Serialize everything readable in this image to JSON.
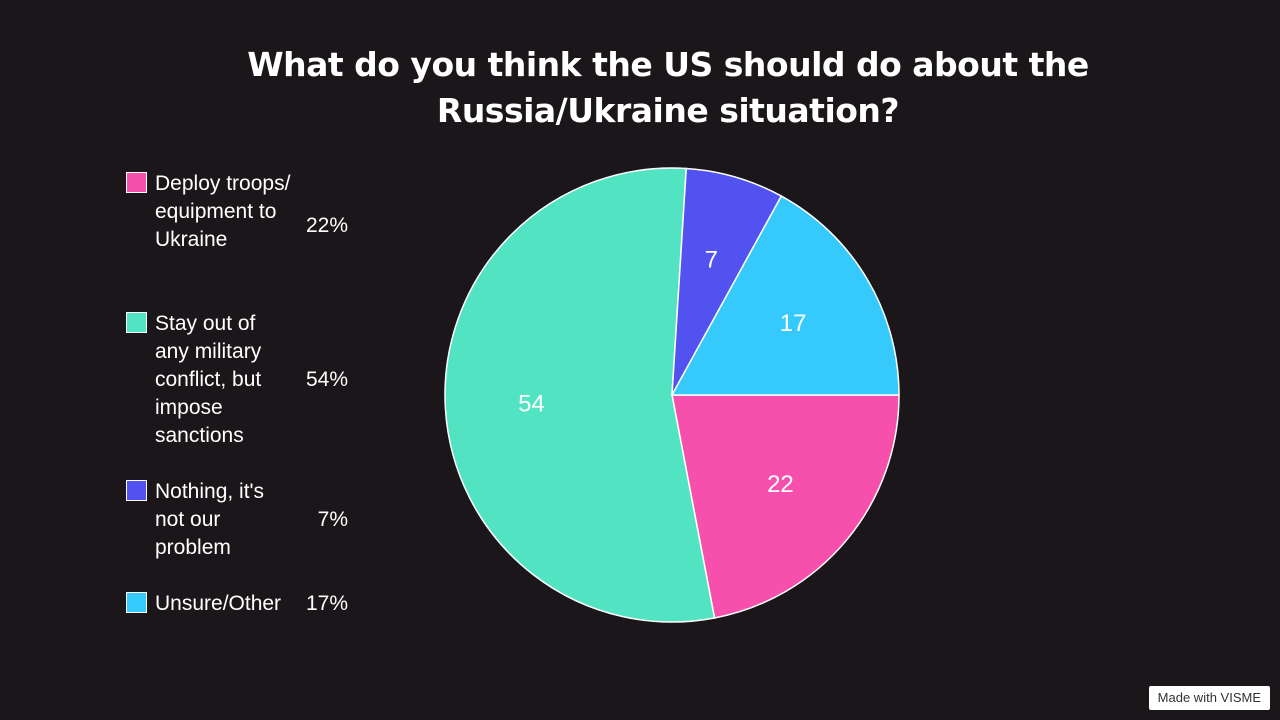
{
  "chart_data": {
    "type": "pie",
    "title_lines": [
      "What do you think the US should do about the",
      "Russia/Ukraine situation?"
    ],
    "slices": [
      {
        "label": "Deploy troops/ equipment to Ukraine",
        "value": 22,
        "percent": "22%",
        "color": "#f74fac"
      },
      {
        "label": "Stay out of any military conflict, but impose sanctions",
        "value": 54,
        "percent": "54%",
        "color": "#52e3c2"
      },
      {
        "label": "Nothing, it's not our problem",
        "value": 7,
        "percent": "7%",
        "color": "#5252f0"
      },
      {
        "label": "Unsure/Other",
        "value": 17,
        "percent": "17%",
        "color": "#35c9fc"
      }
    ],
    "legend_position": "left"
  },
  "badge": {
    "text": "Made with VISME"
  }
}
